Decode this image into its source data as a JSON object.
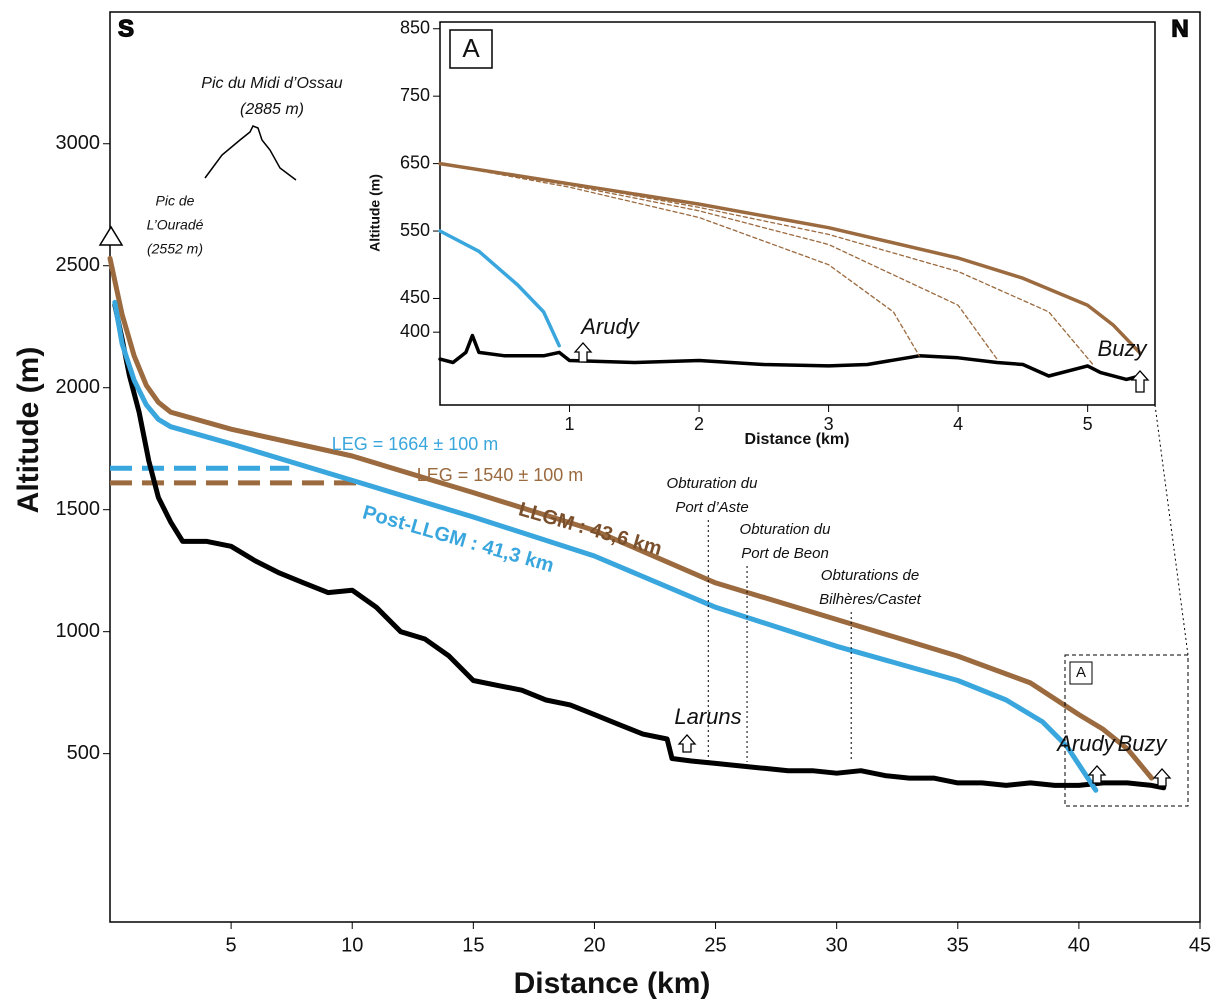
{
  "chart_data": [
    {
      "type": "line",
      "xlabel": "Distance (km)",
      "ylabel": "Altitude (m)",
      "xlim": [
        0,
        45
      ],
      "xticks": [
        5,
        10,
        15,
        20,
        25,
        30,
        35,
        40,
        45
      ],
      "ylim": [
        -190,
        3540
      ],
      "yticks": [
        500,
        1000,
        1500,
        2000,
        2500,
        3000
      ],
      "series": [
        {
          "color": "#000000",
          "x": [
            0.2,
            0.5,
            0.8,
            1.2,
            1.6,
            2,
            2.5,
            3,
            4,
            5,
            6,
            7,
            8,
            9,
            10,
            11,
            12,
            13,
            14,
            15,
            16,
            17,
            18,
            19,
            20,
            21,
            22,
            23,
            23.2,
            24,
            25,
            26,
            27,
            28,
            29,
            30,
            31,
            32,
            33,
            34,
            35,
            36,
            37,
            38,
            39,
            40,
            41,
            42,
            43,
            43.5
          ],
          "values": [
            2340,
            2200,
            2050,
            1900,
            1700,
            1550,
            1450,
            1370,
            1370,
            1350,
            1290,
            1240,
            1200,
            1160,
            1170,
            1100,
            1000,
            970,
            900,
            800,
            780,
            760,
            720,
            700,
            660,
            620,
            580,
            560,
            480,
            470,
            460,
            450,
            440,
            430,
            430,
            420,
            430,
            410,
            400,
            400,
            380,
            380,
            370,
            380,
            370,
            370,
            380,
            380,
            370,
            360
          ]
        },
        {
          "color": "#9b6a3f",
          "x": [
            0,
            0.5,
            1,
            1.5,
            2,
            2.5,
            5,
            10,
            15,
            20,
            25,
            30,
            35,
            38,
            40,
            41,
            42,
            42.5,
            43
          ],
          "values": [
            2530,
            2300,
            2130,
            2010,
            1940,
            1900,
            1830,
            1720,
            1570,
            1415,
            1200,
            1050,
            900,
            790,
            660,
            600,
            520,
            460,
            400
          ]
        },
        {
          "color": "#39a6dd",
          "x": [
            0.2,
            0.5,
            1,
            1.5,
            2,
            2.5,
            5,
            10,
            15,
            20,
            25,
            30,
            35,
            37,
            38.5,
            39.5,
            40.3,
            40.7
          ],
          "values": [
            2350,
            2180,
            2030,
            1930,
            1870,
            1840,
            1770,
            1620,
            1470,
            1310,
            1100,
            940,
            800,
            720,
            630,
            530,
            410,
            350
          ]
        }
      ],
      "leg_lines": [
        {
          "color": "#39a6dd",
          "x": [
            0,
            7.4
          ],
          "y": 1670
        },
        {
          "color": "#9b6a3f",
          "x": [
            0,
            10.3
          ],
          "y": 1610
        }
      ],
      "obturation_x": [
        24.7,
        26.3,
        30.6
      ],
      "annotations": {
        "south": "S",
        "north": "N",
        "pic_midi": "Pic du Midi d’Ossau",
        "pic_midi_alt": "(2885 m)",
        "pic_ourade_1": "Pic de",
        "pic_ourade_2": "L’Ouradé",
        "pic_ourade_alt": "(2552 m)",
        "leg_blue": "LEG = 1664 ± 100 m",
        "leg_brown": "LEG = 1540 ± 100 m",
        "llgm": "LLGM : 43,6 km",
        "post_llgm": "Post-LLGM : 41,3 km",
        "obt1_a": "Obturation du",
        "obt1_b": "Port d’Aste",
        "obt2_a": "Obturation du",
        "obt2_b": "Port de Beon",
        "obt3_a": "Obturations de",
        "obt3_b": "Bilhères/Castet",
        "laruns": "Laruns",
        "arudy": "Arudy",
        "buzy": "Buzy",
        "box": "A"
      }
    },
    {
      "type": "line",
      "xlabel": "Distance (km)",
      "ylabel": "Altitude (m)",
      "panel": "A",
      "xlim": [
        0,
        5.52
      ],
      "xticks": [
        1,
        2,
        3,
        4,
        5
      ],
      "ylim": [
        292,
        860
      ],
      "yticks": [
        400,
        450,
        550,
        650,
        750,
        850
      ],
      "series": [
        {
          "color": "#000000",
          "x": [
            0,
            0.1,
            0.2,
            0.25,
            0.3,
            0.5,
            0.8,
            0.92,
            1,
            1.5,
            2,
            2.5,
            3,
            3.3,
            3.7,
            4,
            4.3,
            4.5,
            4.7,
            5,
            5.1,
            5.3,
            5.4
          ],
          "values": [
            360,
            355,
            370,
            395,
            370,
            365,
            365,
            370,
            358,
            355,
            358,
            352,
            350,
            352,
            365,
            362,
            355,
            352,
            335,
            350,
            340,
            330,
            335
          ]
        },
        {
          "color": "#9b6a3f",
          "x": [
            0,
            1,
            2,
            3,
            4,
            4.5,
            5,
            5.2,
            5.4
          ],
          "values": [
            650,
            620,
            590,
            555,
            510,
            480,
            440,
            410,
            370
          ]
        },
        {
          "color": "#9b6a3f",
          "dashed": true,
          "x": [
            0,
            1,
            2,
            3,
            3.5,
            3.7
          ],
          "values": [
            650,
            615,
            570,
            500,
            430,
            365
          ]
        },
        {
          "color": "#9b6a3f",
          "dashed": true,
          "x": [
            0,
            1,
            2,
            3,
            4,
            4.3
          ],
          "values": [
            650,
            618,
            580,
            530,
            440,
            360
          ]
        },
        {
          "color": "#9b6a3f",
          "dashed": true,
          "x": [
            0,
            1,
            2,
            3,
            4,
            4.7,
            5.05
          ],
          "values": [
            650,
            620,
            585,
            545,
            490,
            430,
            350
          ]
        },
        {
          "color": "#39a6dd",
          "x": [
            0,
            0.3,
            0.6,
            0.8,
            0.92
          ],
          "values": [
            550,
            520,
            470,
            430,
            380
          ]
        }
      ],
      "annotations": {
        "arudy": "Arudy",
        "buzy": "Buzy"
      }
    }
  ]
}
